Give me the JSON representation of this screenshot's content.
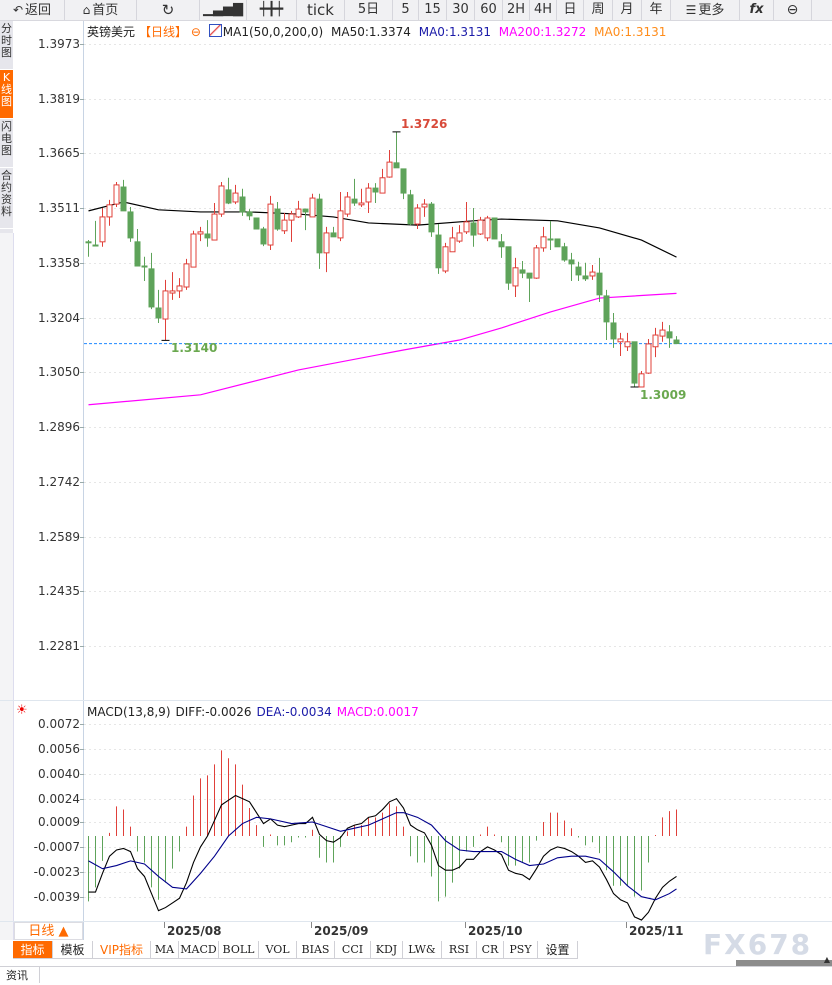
{
  "toolbar": {
    "back": "返回",
    "home": "首页",
    "tick": "tick",
    "five_day": "5日",
    "periods": [
      "5",
      "15",
      "30",
      "60",
      "2H",
      "4H",
      "日",
      "周",
      "月",
      "年"
    ],
    "more": "更多",
    "fx": "fx",
    "icons": [
      "back-arrow-icon",
      "home-icon",
      "refresh-icon",
      "bar-chart-icon",
      "candlestick-icon",
      "menu-icon",
      "function-icon",
      "zoom-out-icon"
    ]
  },
  "left_tabs": [
    {
      "label": "分时图",
      "selected": false
    },
    {
      "label": "K线图",
      "selected": true
    },
    {
      "label": "闪电图",
      "selected": false
    },
    {
      "label": "合约资料",
      "selected": false
    }
  ],
  "legend": {
    "symbol": "英镑美元",
    "period": "【日线】",
    "ma_config": "MA1(50,0,200,0)",
    "ma50": "MA50:1.3374",
    "ma0_a": "MA0:1.3131",
    "ma200": "MA200:1.3272",
    "ma0_b": "MA0:1.3131"
  },
  "macd_legend": {
    "config": "MACD(13,8,9)",
    "diff": "DIFF:-0.0026",
    "dea": "DEA:-0.0034",
    "macd": "MACD:0.0017"
  },
  "colors": {
    "up": "#e0403a",
    "down": "#5ea35a",
    "ma50": "#000000",
    "ma200": "#ff00ff",
    "price_line": "#1e88ff",
    "dea": "#00008b",
    "accent": "#ff6a00"
  },
  "chart_data": [
    {
      "type": "candlestick",
      "title": "英镑美元",
      "y_ticks": [
        "1.3973",
        "1.3819",
        "1.3665",
        "1.3511",
        "1.3358",
        "1.3204",
        "1.3050",
        "1.2896",
        "1.2742",
        "1.2589",
        "1.2435",
        "1.2281"
      ],
      "ylim": [
        1.2281,
        1.3973
      ],
      "x_ticks": [
        {
          "label": "2025/08",
          "index": 12
        },
        {
          "label": "2025/09",
          "index": 33
        },
        {
          "label": "2025/10",
          "index": 55
        },
        {
          "label": "2025/11",
          "index": 78
        }
      ],
      "current_price": 1.3131,
      "annotations": [
        {
          "label": "1.3726",
          "index": 45,
          "value": 1.3726,
          "kind": "high"
        },
        {
          "label": "1.3140",
          "index": 12,
          "value": 1.314,
          "kind": "low"
        },
        {
          "label": "1.3009",
          "index": 79,
          "value": 1.3009,
          "kind": "low"
        }
      ],
      "ohlc": [
        [
          1.3417,
          1.3422,
          1.3375,
          1.3416
        ],
        [
          1.3408,
          1.3476,
          1.3408,
          1.3407
        ],
        [
          1.3417,
          1.3512,
          1.3403,
          1.3487
        ],
        [
          1.3487,
          1.3535,
          1.3462,
          1.3521
        ],
        [
          1.3523,
          1.3585,
          1.3515,
          1.3577
        ],
        [
          1.3571,
          1.3591,
          1.3504,
          1.3504
        ],
        [
          1.3501,
          1.3515,
          1.3417,
          1.3428
        ],
        [
          1.3417,
          1.3453,
          1.3349,
          1.3349
        ],
        [
          1.3349,
          1.3375,
          1.3307,
          1.3348
        ],
        [
          1.3341,
          1.3386,
          1.3228,
          1.3234
        ],
        [
          1.3231,
          1.3282,
          1.3189,
          1.3203
        ],
        [
          1.32,
          1.331,
          1.314,
          1.3279
        ],
        [
          1.3273,
          1.3332,
          1.3254,
          1.3279
        ],
        [
          1.3279,
          1.3315,
          1.3259,
          1.3293
        ],
        [
          1.329,
          1.3369,
          1.3282,
          1.3355
        ],
        [
          1.3346,
          1.3448,
          1.3346,
          1.3439
        ],
        [
          1.3439,
          1.3459,
          1.3419,
          1.3445
        ],
        [
          1.3439,
          1.3478,
          1.3403,
          1.3428
        ],
        [
          1.3422,
          1.3526,
          1.3422,
          1.3495
        ],
        [
          1.3495,
          1.3585,
          1.3487,
          1.3574
        ],
        [
          1.3563,
          1.3597,
          1.3523,
          1.3526
        ],
        [
          1.3529,
          1.3577,
          1.3523,
          1.3554
        ],
        [
          1.3543,
          1.3566,
          1.349,
          1.3501
        ],
        [
          1.3501,
          1.3509,
          1.3478,
          1.349
        ],
        [
          1.3484,
          1.3484,
          1.3453,
          1.3453
        ],
        [
          1.3453,
          1.3459,
          1.3405,
          1.3411
        ],
        [
          1.3408,
          1.3546,
          1.3394,
          1.3523
        ],
        [
          1.3509,
          1.3529,
          1.3448,
          1.3453
        ],
        [
          1.3448,
          1.3498,
          1.3439,
          1.3478
        ],
        [
          1.3478,
          1.3504,
          1.3417,
          1.3495
        ],
        [
          1.3487,
          1.3532,
          1.3484,
          1.3509
        ],
        [
          1.3509,
          1.3509,
          1.345,
          1.3501
        ],
        [
          1.3487,
          1.3552,
          1.3487,
          1.354
        ],
        [
          1.3537,
          1.3552,
          1.3341,
          1.3386
        ],
        [
          1.3386,
          1.3459,
          1.3332,
          1.3442
        ],
        [
          1.3442,
          1.3459,
          1.3431,
          1.3431
        ],
        [
          1.3428,
          1.3557,
          1.3419,
          1.3504
        ],
        [
          1.3495,
          1.3557,
          1.3487,
          1.3543
        ],
        [
          1.3537,
          1.3594,
          1.3518,
          1.3526
        ],
        [
          1.3521,
          1.3566,
          1.3515,
          1.3526
        ],
        [
          1.3529,
          1.3582,
          1.3498,
          1.3568
        ],
        [
          1.3568,
          1.3582,
          1.3526,
          1.3557
        ],
        [
          1.3554,
          1.3622,
          1.3554,
          1.3597
        ],
        [
          1.3599,
          1.3675,
          1.3597,
          1.3641
        ],
        [
          1.3639,
          1.3726,
          1.3625,
          1.3625
        ],
        [
          1.3622,
          1.3622,
          1.3537,
          1.3554
        ],
        [
          1.3549,
          1.3563,
          1.3464,
          1.3467
        ],
        [
          1.3467,
          1.3523,
          1.3453,
          1.3512
        ],
        [
          1.3515,
          1.3537,
          1.3487,
          1.3523
        ],
        [
          1.3523,
          1.3529,
          1.3431,
          1.3445
        ],
        [
          1.3436,
          1.3467,
          1.3327,
          1.3344
        ],
        [
          1.3335,
          1.3414,
          1.3329,
          1.3403
        ],
        [
          1.3389,
          1.3459,
          1.3389,
          1.3428
        ],
        [
          1.3419,
          1.3464,
          1.3414,
          1.3442
        ],
        [
          1.3445,
          1.3529,
          1.3439,
          1.3473
        ],
        [
          1.347,
          1.3512,
          1.3403,
          1.3436
        ],
        [
          1.3439,
          1.3487,
          1.3436,
          1.3478
        ],
        [
          1.3428,
          1.349,
          1.3419,
          1.3484
        ],
        [
          1.3484,
          1.3484,
          1.3425,
          1.3425
        ],
        [
          1.3417,
          1.3439,
          1.3372,
          1.3403
        ],
        [
          1.3403,
          1.3403,
          1.3282,
          1.3301
        ],
        [
          1.3293,
          1.3372,
          1.3262,
          1.3344
        ],
        [
          1.3338,
          1.3363,
          1.3315,
          1.3329
        ],
        [
          1.3329,
          1.3329,
          1.3248,
          1.3315
        ],
        [
          1.3315,
          1.3408,
          1.3313,
          1.34
        ],
        [
          1.34,
          1.3459,
          1.3389,
          1.3431
        ],
        [
          1.3425,
          1.3476,
          1.3394,
          1.3424
        ],
        [
          1.3425,
          1.3425,
          1.3403,
          1.3403
        ],
        [
          1.3403,
          1.3414,
          1.3361,
          1.3366
        ],
        [
          1.3366,
          1.3386,
          1.3307,
          1.3355
        ],
        [
          1.3346,
          1.3361,
          1.3307,
          1.3324
        ],
        [
          1.3321,
          1.3358,
          1.3307,
          1.3313
        ],
        [
          1.3321,
          1.3352,
          1.331,
          1.3332
        ],
        [
          1.3329,
          1.3372,
          1.3248,
          1.3268
        ],
        [
          1.3265,
          1.3282,
          1.3141,
          1.3192
        ],
        [
          1.3189,
          1.3217,
          1.3119,
          1.3144
        ],
        [
          1.3136,
          1.3161,
          1.3096,
          1.3144
        ],
        [
          1.3122,
          1.3161,
          1.311,
          1.3136
        ],
        [
          1.3136,
          1.3136,
          1.3009,
          1.302
        ],
        [
          1.3009,
          1.3054,
          1.3009,
          1.3046
        ],
        [
          1.3048,
          1.3144,
          1.3046,
          1.313
        ],
        [
          1.3122,
          1.3175,
          1.3093,
          1.3155
        ],
        [
          1.3152,
          1.3192,
          1.3136,
          1.3169
        ],
        [
          1.3164,
          1.3183,
          1.3119,
          1.3147
        ],
        [
          1.3141,
          1.3152,
          1.3131,
          1.3131
        ]
      ],
      "series": [
        {
          "name": "MA50",
          "points": [
            [
              1,
              1.3504
            ],
            [
              6,
              1.3529
            ],
            [
              11,
              1.3507
            ],
            [
              17,
              1.3501
            ],
            [
              24,
              1.3501
            ],
            [
              31,
              1.3495
            ],
            [
              36,
              1.3487
            ],
            [
              41,
              1.347
            ],
            [
              48,
              1.3464
            ],
            [
              56,
              1.3476
            ],
            [
              60,
              1.3481
            ],
            [
              68,
              1.3476
            ],
            [
              74,
              1.3456
            ],
            [
              80,
              1.3422
            ],
            [
              85,
              1.3374
            ]
          ]
        },
        {
          "name": "MA200",
          "points": [
            [
              1,
              1.2959
            ],
            [
              17,
              1.2987
            ],
            [
              31,
              1.3057
            ],
            [
              46,
              1.3113
            ],
            [
              54,
              1.3141
            ],
            [
              60,
              1.3175
            ],
            [
              67,
              1.322
            ],
            [
              74,
              1.3259
            ],
            [
              85,
              1.3272
            ]
          ]
        }
      ]
    },
    {
      "type": "bar+line",
      "title": "MACD(13,8,9)",
      "y_ticks": [
        "0.0072",
        "0.0056",
        "0.0040",
        "0.0024",
        "0.0009",
        "-0.0007",
        "-0.0023",
        "-0.0039"
      ],
      "ylim": [
        -0.0055,
        0.008
      ],
      "macd": [
        -0.0042,
        -0.0033,
        -0.0016,
        0.0002,
        0.0019,
        0.0017,
        0.0006,
        -0.001,
        -0.0017,
        -0.0033,
        -0.0041,
        -0.003,
        -0.0021,
        -0.001,
        0.0006,
        0.0026,
        0.0037,
        0.0039,
        0.0046,
        0.0055,
        0.005,
        0.0046,
        0.0033,
        0.0018,
        0.0007,
        -0.0007,
        0.0001,
        -0.0006,
        -0.0006,
        -0.0004,
        -0.0001,
        -0.0001,
        0.0004,
        -0.0014,
        -0.0017,
        -0.0017,
        -0.0007,
        0.0003,
        0.0007,
        0.0007,
        0.0012,
        0.0012,
        0.0015,
        0.0021,
        0.0019,
        0.0006,
        -0.0013,
        -0.0017,
        -0.0017,
        -0.0026,
        -0.0042,
        -0.0039,
        -0.003,
        -0.0021,
        -0.001,
        -0.0007,
        0.0001,
        0.0006,
        0.0001,
        -0.0004,
        -0.0019,
        -0.0019,
        -0.0017,
        -0.0017,
        -0.0003,
        0.0009,
        0.0015,
        0.0015,
        0.001,
        0.0005,
        -0.0001,
        -0.0006,
        -0.0004,
        -0.0011,
        -0.0022,
        -0.0032,
        -0.0032,
        -0.0032,
        -0.0039,
        -0.0035,
        -0.0017,
        0.0,
        0.0012,
        0.0016,
        0.0017
      ],
      "diff": [
        -0.0036,
        -0.0036,
        -0.0024,
        -0.0013,
        -0.0009,
        -0.0008,
        -0.001,
        -0.0021,
        -0.0026,
        -0.0037,
        -0.0048,
        -0.0046,
        -0.0043,
        -0.004,
        -0.003,
        -0.0017,
        -0.0007,
        0.0,
        0.001,
        0.002,
        0.0023,
        0.0026,
        0.0024,
        0.0022,
        0.0015,
        0.0008,
        0.0011,
        0.0007,
        0.0006,
        0.0007,
        0.0008,
        0.0008,
        0.0012,
        0.0001,
        -0.0003,
        -0.0004,
        -0.0001,
        0.0005,
        0.0007,
        0.0008,
        0.0012,
        0.0013,
        0.0017,
        0.0022,
        0.0024,
        0.0018,
        0.0007,
        0.0004,
        0.0002,
        -0.0006,
        -0.0019,
        -0.0022,
        -0.0022,
        -0.002,
        -0.0015,
        -0.0015,
        -0.001,
        -0.0007,
        -0.0009,
        -0.0012,
        -0.0022,
        -0.0024,
        -0.0025,
        -0.0028,
        -0.0021,
        -0.0013,
        -0.0009,
        -0.0007,
        -0.0008,
        -0.001,
        -0.0013,
        -0.0017,
        -0.0016,
        -0.002,
        -0.0028,
        -0.0037,
        -0.0041,
        -0.0043,
        -0.0052,
        -0.0054,
        -0.0049,
        -0.004,
        -0.0033,
        -0.0029,
        -0.0026
      ],
      "dea_points": [
        [
          1,
          -0.0016
        ],
        [
          3,
          -0.0021
        ],
        [
          5,
          -0.0019
        ],
        [
          7,
          -0.0016
        ],
        [
          9,
          -0.0018
        ],
        [
          11,
          -0.0026
        ],
        [
          13,
          -0.0033
        ],
        [
          15,
          -0.0034
        ],
        [
          17,
          -0.0024
        ],
        [
          19,
          -0.0013
        ],
        [
          21,
          0.0
        ],
        [
          23,
          0.0008
        ],
        [
          25,
          0.0012
        ],
        [
          27,
          0.0011
        ],
        [
          30,
          0.0008
        ],
        [
          33,
          0.0009
        ],
        [
          35,
          0.0006
        ],
        [
          37,
          0.0003
        ],
        [
          39,
          0.0005
        ],
        [
          41,
          0.0007
        ],
        [
          43,
          0.0011
        ],
        [
          45,
          0.0015
        ],
        [
          46,
          0.0015
        ],
        [
          48,
          0.0012
        ],
        [
          50,
          0.0007
        ],
        [
          52,
          -0.0003
        ],
        [
          54,
          -0.0009
        ],
        [
          56,
          -0.001
        ],
        [
          58,
          -0.001
        ],
        [
          60,
          -0.001
        ],
        [
          62,
          -0.0015
        ],
        [
          64,
          -0.0019
        ],
        [
          66,
          -0.0018
        ],
        [
          68,
          -0.0014
        ],
        [
          70,
          -0.0013
        ],
        [
          72,
          -0.0013
        ],
        [
          74,
          -0.0015
        ],
        [
          76,
          -0.0023
        ],
        [
          78,
          -0.0032
        ],
        [
          80,
          -0.0039
        ],
        [
          82,
          -0.0041
        ],
        [
          84,
          -0.0037
        ],
        [
          85,
          -0.0034
        ]
      ]
    }
  ],
  "period_selector": "日线 ▲",
  "indicator_tabs": [
    {
      "label": "指标",
      "selected": true
    },
    {
      "label": "模板"
    },
    {
      "label": "VIP指标",
      "vip": true
    },
    {
      "label": "MA"
    },
    {
      "label": "MACD"
    },
    {
      "label": "BOLL"
    },
    {
      "label": "VOL"
    },
    {
      "label": "BIAS"
    },
    {
      "label": "CCI"
    },
    {
      "label": "KDJ"
    },
    {
      "label": "LW&"
    },
    {
      "label": "RSI"
    },
    {
      "label": "CR"
    },
    {
      "label": "PSY"
    },
    {
      "label": "设置"
    }
  ],
  "watermark": "FX678",
  "bottom_tab": "资讯"
}
